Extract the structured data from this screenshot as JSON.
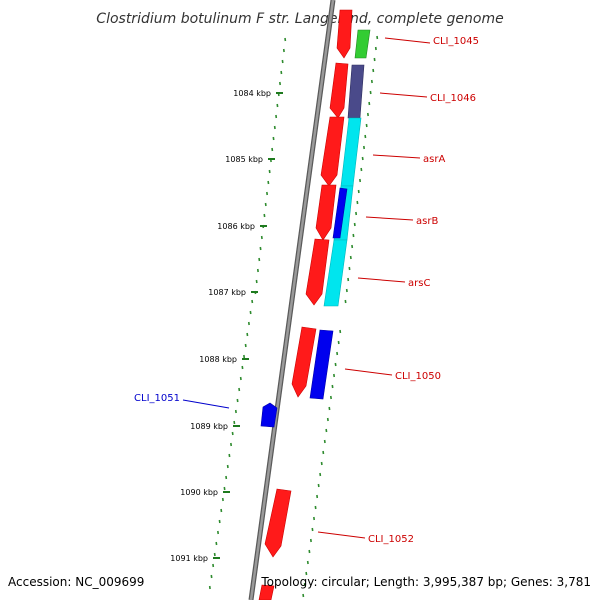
{
  "title": "Clostridium botulinum F str. Langeland, complete genome",
  "footer": {
    "accession": "Accession: NC_009699",
    "info": "Topology: circular; Length: 3,995,387 bp; Genes: 3,781"
  },
  "ticks": [
    "1084 kbp",
    "1085 kbp",
    "1086 kbp",
    "1087 kbp",
    "1088 kbp",
    "1089 kbp",
    "1090 kbp",
    "1091 kbp"
  ],
  "genes": [
    {
      "label": "CLI_1045",
      "color": "#cc0000"
    },
    {
      "label": "CLI_1046",
      "color": "#cc0000"
    },
    {
      "label": "asrA",
      "color": "#cc0000"
    },
    {
      "label": "asrB",
      "color": "#cc0000"
    },
    {
      "label": "arsC",
      "color": "#cc0000"
    },
    {
      "label": "CLI_1050",
      "color": "#cc0000"
    },
    {
      "label": "CLI_1051",
      "color": "#0000cc"
    },
    {
      "label": "CLI_1052",
      "color": "#cc0000"
    }
  ],
  "colors": {
    "cds": "#ff0000",
    "cog_green": "#33cc33",
    "cog_purple": "#4a4a8a",
    "cog_cyan": "#00e5ee",
    "cog_blue": "#0000ee",
    "backbone": "#888888",
    "gc_dots": "#2e8b2e"
  }
}
